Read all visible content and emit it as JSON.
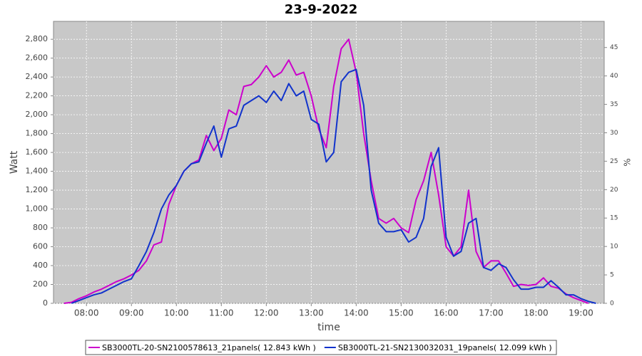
{
  "chart_data": {
    "type": "line",
    "title": "23-9-2022",
    "xlabel": "time",
    "ylabel": "Watt",
    "y2label": "%",
    "x": [
      "07:30",
      "07:40",
      "07:50",
      "08:00",
      "08:10",
      "08:20",
      "08:30",
      "08:40",
      "08:50",
      "09:00",
      "09:10",
      "09:20",
      "09:30",
      "09:40",
      "09:50",
      "10:00",
      "10:10",
      "10:20",
      "10:30",
      "10:40",
      "10:50",
      "11:00",
      "11:10",
      "11:20",
      "11:30",
      "11:40",
      "11:50",
      "12:00",
      "12:10",
      "12:20",
      "12:30",
      "12:40",
      "12:50",
      "13:00",
      "13:10",
      "13:20",
      "13:30",
      "13:40",
      "13:50",
      "14:00",
      "14:10",
      "14:20",
      "14:30",
      "14:40",
      "14:50",
      "15:00",
      "15:10",
      "15:20",
      "15:30",
      "15:40",
      "15:50",
      "16:00",
      "16:10",
      "16:20",
      "16:30",
      "16:40",
      "16:50",
      "17:00",
      "17:10",
      "17:20",
      "17:30",
      "17:40",
      "17:50",
      "18:00",
      "18:10",
      "18:20",
      "18:30",
      "18:40",
      "18:50",
      "19:00",
      "19:10",
      "19:20"
    ],
    "series": [
      {
        "name": "SB3000TL-20-SN2100578613_21panels( 12.843 kWh )",
        "color": "#cc00cc",
        "values": [
          0,
          10,
          50,
          80,
          120,
          150,
          190,
          230,
          260,
          300,
          350,
          450,
          620,
          650,
          1050,
          1250,
          1400,
          1480,
          1520,
          1780,
          1620,
          1750,
          2050,
          2000,
          2300,
          2320,
          2400,
          2520,
          2400,
          2450,
          2580,
          2420,
          2450,
          2200,
          1850,
          1650,
          2300,
          2700,
          2800,
          2450,
          1800,
          1300,
          900,
          850,
          900,
          800,
          750,
          1100,
          1300,
          1600,
          1150,
          600,
          500,
          600,
          1200,
          550,
          380,
          450,
          450,
          320,
          180,
          200,
          190,
          200,
          270,
          180,
          160,
          100,
          60,
          30,
          0,
          null
        ]
      },
      {
        "name": "SB3000TL-21-SN2130032031_19panels( 12.099 kWh )",
        "color": "#1133cc",
        "values": [
          null,
          0,
          30,
          60,
          90,
          110,
          150,
          190,
          230,
          260,
          400,
          550,
          750,
          1000,
          1150,
          1250,
          1400,
          1480,
          1500,
          1700,
          1880,
          1550,
          1850,
          1880,
          2100,
          2150,
          2200,
          2130,
          2250,
          2150,
          2330,
          2200,
          2250,
          1950,
          1900,
          1500,
          1600,
          2350,
          2450,
          2480,
          2100,
          1200,
          850,
          760,
          760,
          780,
          650,
          700,
          900,
          1450,
          1650,
          700,
          500,
          550,
          850,
          900,
          380,
          350,
          420,
          380,
          250,
          150,
          150,
          170,
          170,
          240,
          170,
          90,
          90,
          50,
          20,
          0
        ]
      }
    ],
    "xlim": [
      "07:16",
      "19:31"
    ],
    "xticks": [
      "08:00",
      "09:00",
      "10:00",
      "11:00",
      "12:00",
      "13:00",
      "14:00",
      "15:00",
      "16:00",
      "17:00",
      "18:00",
      "19:00"
    ],
    "ylim": [
      0,
      2990
    ],
    "yticks": [
      0,
      200,
      400,
      600,
      800,
      {
        "value": 1000,
        "label": "1,000"
      },
      {
        "value": 1200,
        "label": "1,200"
      },
      {
        "value": 1400,
        "label": "1,400"
      },
      {
        "value": 1600,
        "label": "1,600"
      },
      {
        "value": 1800,
        "label": "1,800"
      },
      {
        "value": 2000,
        "label": "2,000"
      },
      {
        "value": 2200,
        "label": "2,200"
      },
      {
        "value": 2400,
        "label": "2,400"
      },
      {
        "value": 2600,
        "label": "2,600"
      },
      {
        "value": 2800,
        "label": "2,800"
      }
    ],
    "y2lim": [
      0,
      49.6
    ],
    "y2ticks": [
      0,
      5,
      10,
      15,
      20,
      25,
      30,
      35,
      40,
      45
    ],
    "grid": true
  }
}
